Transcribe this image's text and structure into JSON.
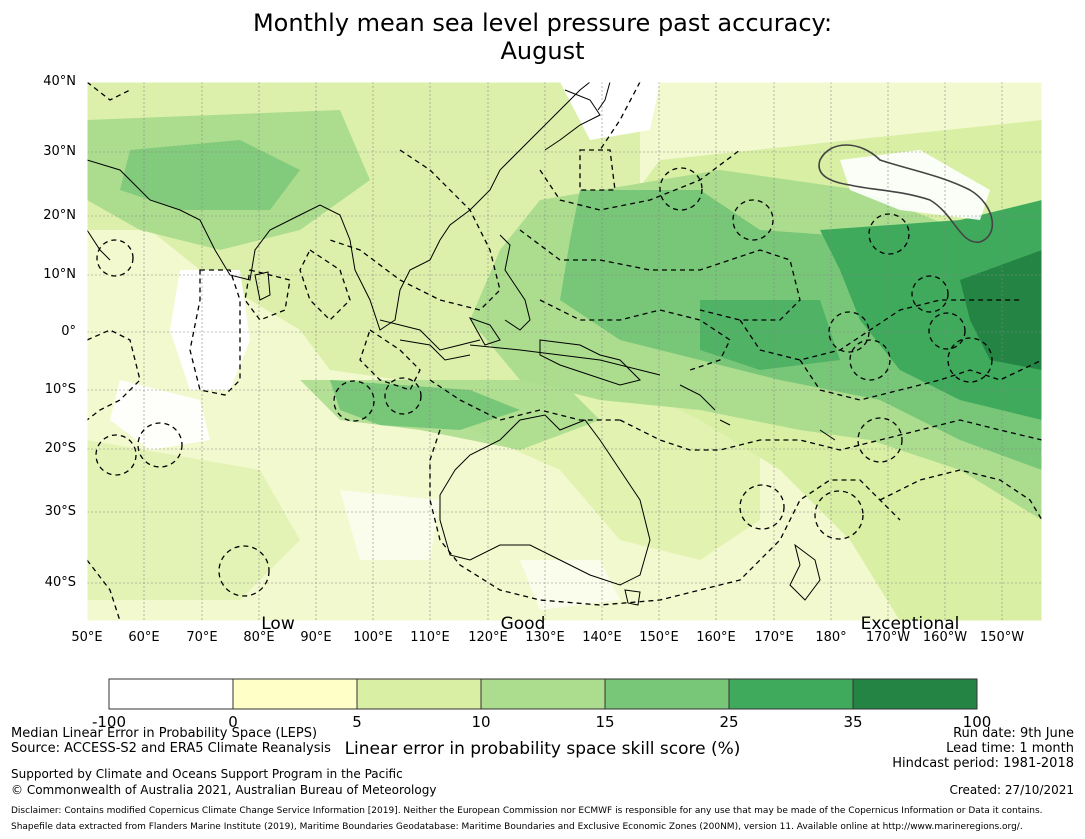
{
  "title": {
    "line1": "Monthly mean sea level pressure past accuracy:",
    "line2": "August"
  },
  "axes": {
    "lat_labels": [
      "40°N",
      "30°N",
      "20°N",
      "10°N",
      "0°",
      "10°S",
      "20°S",
      "30°S",
      "40°S"
    ],
    "lon_labels": [
      "50°E",
      "60°E",
      "70°E",
      "80°E",
      "90°E",
      "100°E",
      "110°E",
      "120°E",
      "130°E",
      "140°E",
      "150°E",
      "160°E",
      "170°E",
      "180°",
      "170°W",
      "160°W",
      "150°W"
    ]
  },
  "skill_labels": {
    "low": "Low",
    "good": "Good",
    "exceptional": "Exceptional"
  },
  "colorbar": {
    "ticks": [
      "-100",
      "0",
      "5",
      "10",
      "15",
      "25",
      "35",
      "100"
    ],
    "colors": [
      "#ffffff",
      "#ffffc7",
      "#d8efa4",
      "#acdd8e",
      "#78c678",
      "#3fa95c",
      "#238443"
    ],
    "label": "Linear error in probability space skill score (%)"
  },
  "footer": {
    "left1": "Median Linear Error in Probability Space (LEPS)",
    "left2": "Source: ACCESS-S2 and ERA5 Climate Reanalysis",
    "left3": "Supported by Climate and Oceans Support Program in the Pacific",
    "left4": "© Commonwealth of Australia 2021, Australian Bureau of Meteorology",
    "right1": "Run date: 9th June",
    "right2": "Lead time: 1 month",
    "right3": "Hindcast period: 1981-2018",
    "created": "Created: 27/10/2021",
    "disclaimer": "Disclaimer: Contains modified Copernicus Climate Change Service Information [2019]. Neither the European Commission nor ECMWF is responsible for any use that may be made of the Copernicus Information or Data it contains.",
    "shapefile": "Shapefile data extracted from Flanders Marine Institute (2019), Maritime Boundaries Geodatabase: Maritime Boundaries and Exclusive Economic Zones (200NM), version 11. Available online at http://www.marineregions.org/."
  }
}
